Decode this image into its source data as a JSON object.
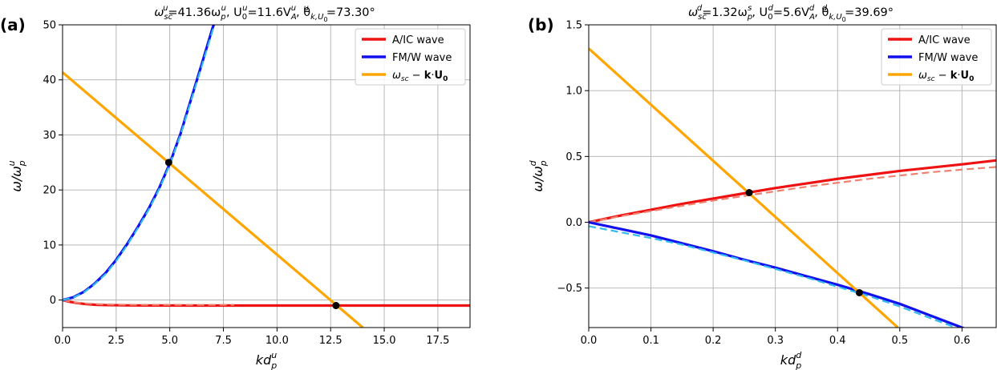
{
  "chart_data": [
    {
      "type": "line",
      "panel_label": "(a)",
      "title": "ω_sc^u=41.36ω_p^u,   U_0^u=11.6V_A^u,   θ^u_{k,U_0}=73.30°",
      "title_parts": {
        "p1": "ω",
        "p1_sub": "sc",
        "p1_sup": "u",
        "p2": "=41.36ω",
        "p2_sub": "p",
        "p2_sup": "u",
        "p3": ",   U",
        "p3_sub": "0",
        "p3_sup": "u",
        "p4": "=11.6V",
        "p4_sub": "A",
        "p4_sup": "u",
        "p5": ",   θ",
        "p5_sub": "k,U",
        "p5_subsub": "0",
        "p5_sup": "u",
        "p6": "=73.30°"
      },
      "xlabel": "kd_p^u",
      "xlabel_parts": {
        "main": "kd",
        "sub": "p",
        "sup": "u"
      },
      "ylabel": "ω/ω_p^u",
      "ylabel_parts": {
        "main": "ω/ω",
        "sub": "p",
        "sup": "u"
      },
      "xlim": [
        0,
        19
      ],
      "ylim": [
        -5,
        50
      ],
      "xticks": [
        0,
        2.5,
        5,
        7.5,
        10,
        12.5,
        15,
        17.5
      ],
      "xtick_labels": [
        "0.0",
        "2.5",
        "5.0",
        "7.5",
        "10.0",
        "12.5",
        "15.0",
        "17.5"
      ],
      "yticks": [
        0,
        10,
        20,
        30,
        40,
        50
      ],
      "ytick_labels": [
        "0",
        "10",
        "20",
        "30",
        "40",
        "50"
      ],
      "grid": true,
      "legend_position": "top-right",
      "legend": [
        {
          "label": "A/IC wave",
          "color": "#ee1111"
        },
        {
          "label": "FM/W wave",
          "color": "#1111ee"
        },
        {
          "label": "ω_sc − k·U_0",
          "color": "#ffa500"
        }
      ],
      "legend_parts": {
        "third_w": "ω",
        "third_sub": "sc",
        "third_mid": " − ",
        "third_k": "k",
        "third_dot": "·",
        "third_U": "U",
        "third_0": "0"
      },
      "series": [
        {
          "name": "A/IC wave",
          "color": "#ee1111",
          "style": "solid",
          "x": [
            0,
            0.3,
            0.6,
            1.0,
            1.5,
            2.0,
            3.0,
            4.0,
            6.0,
            8.0,
            10.0,
            12.0,
            14.0,
            17.0,
            19.0
          ],
          "y": [
            0,
            -0.3,
            -0.5,
            -0.7,
            -0.85,
            -0.92,
            -0.97,
            -0.99,
            -1.0,
            -1.0,
            -1.0,
            -1.0,
            -1.0,
            -1.0,
            -1.0
          ]
        },
        {
          "name": "A/IC approx",
          "color": "#f08070",
          "style": "dashed",
          "x": [
            0,
            0.3,
            0.6,
            1.0,
            1.5,
            2.0,
            3.0,
            4.0,
            6.0,
            8.0
          ],
          "y": [
            0,
            -0.25,
            -0.45,
            -0.6,
            -0.72,
            -0.8,
            -0.85,
            -0.87,
            -0.88,
            -0.88
          ]
        },
        {
          "name": "FM/W wave",
          "color": "#1111ee",
          "style": "solid",
          "x": [
            0,
            0.5,
            1.0,
            1.5,
            2.0,
            2.5,
            3.0,
            3.5,
            4.0,
            4.5,
            5.0,
            5.5,
            6.0,
            6.5,
            7.0,
            7.05
          ],
          "y": [
            0,
            0.5,
            1.5,
            3.0,
            4.9,
            7.3,
            10.1,
            13.2,
            16.5,
            20.3,
            24.8,
            30.2,
            36.6,
            43.0,
            49.5,
            50
          ]
        },
        {
          "name": "FM/W approx",
          "color": "#33bbee",
          "style": "dashed",
          "x": [
            0,
            0.5,
            1.0,
            1.5,
            2.0,
            2.5,
            3.0,
            3.5,
            4.0,
            4.5,
            5.0,
            5.5,
            6.0,
            6.5,
            7.0,
            7.1
          ],
          "y": [
            0,
            0.45,
            1.4,
            2.9,
            4.7,
            7.1,
            9.9,
            13.0,
            16.3,
            20.1,
            24.6,
            30.0,
            36.3,
            42.6,
            49.0,
            50
          ]
        },
        {
          "name": "ω_sc − k·U_0",
          "color": "#ffa500",
          "style": "solid",
          "x": [
            0,
            14.0
          ],
          "y": [
            41.36,
            -5.0
          ]
        }
      ],
      "markers": [
        {
          "x": 4.95,
          "y": 25.0
        },
        {
          "x": 12.75,
          "y": -1.0
        }
      ]
    },
    {
      "type": "line",
      "panel_label": "(b)",
      "title": "ω_sc^d=1.32ω_p^s,   U_0^d=5.6V_A^d,   θ^d_{k,U_0}=39.69°",
      "title_parts": {
        "p1": "ω",
        "p1_sub": "sc",
        "p1_sup": "d",
        "p2": "=1.32ω",
        "p2_sub": "p",
        "p2_sup": "s",
        "p3": ",   U",
        "p3_sub": "0",
        "p3_sup": "d",
        "p4": "=5.6V",
        "p4_sub": "A",
        "p4_sup": "d",
        "p5": ",   θ",
        "p5_sub": "k,U",
        "p5_subsub": "0",
        "p5_sup": "d",
        "p6": "=39.69°"
      },
      "xlabel": "kd_p^d",
      "xlabel_parts": {
        "main": "kd",
        "sub": "p",
        "sup": "d"
      },
      "ylabel": "ω/ω_p^d",
      "ylabel_parts": {
        "main": "ω/ω",
        "sub": "p",
        "sup": "d"
      },
      "xlim": [
        0,
        0.655
      ],
      "ylim": [
        -0.8,
        1.5
      ],
      "xticks": [
        0,
        0.1,
        0.2,
        0.3,
        0.4,
        0.5,
        0.6
      ],
      "xtick_labels": [
        "0.0",
        "0.1",
        "0.2",
        "0.3",
        "0.4",
        "0.5",
        "0.6"
      ],
      "yticks": [
        -0.5,
        0,
        0.5,
        1.0,
        1.5
      ],
      "ytick_labels": [
        "−0.5",
        "0.0",
        "0.5",
        "1.0",
        "1.5"
      ],
      "grid": true,
      "legend_position": "top-right",
      "legend": [
        {
          "label": "A/IC wave",
          "color": "#ee1111"
        },
        {
          "label": "FM/W wave",
          "color": "#1111ee"
        },
        {
          "label": "ω_sc − k·U_0",
          "color": "#ffa500"
        }
      ],
      "legend_parts": {
        "third_w": "ω",
        "third_sub": "sc",
        "third_mid": " − ",
        "third_k": "k",
        "third_dot": "·",
        "third_U": "U",
        "third_0": "0"
      },
      "series": [
        {
          "name": "A/IC wave",
          "color": "#ee1111",
          "style": "solid",
          "x": [
            0,
            0.05,
            0.1,
            0.15,
            0.2,
            0.25,
            0.3,
            0.35,
            0.4,
            0.45,
            0.5,
            0.55,
            0.6,
            0.655
          ],
          "y": [
            0,
            0.05,
            0.095,
            0.14,
            0.18,
            0.22,
            0.26,
            0.295,
            0.33,
            0.36,
            0.39,
            0.415,
            0.44,
            0.47
          ]
        },
        {
          "name": "A/IC approx",
          "color": "#f08070",
          "style": "dashed",
          "x": [
            0,
            0.05,
            0.1,
            0.15,
            0.2,
            0.25,
            0.3,
            0.35,
            0.4,
            0.45,
            0.5,
            0.55,
            0.6,
            0.655
          ],
          "y": [
            0,
            0.045,
            0.085,
            0.125,
            0.165,
            0.2,
            0.235,
            0.27,
            0.3,
            0.33,
            0.355,
            0.38,
            0.4,
            0.42
          ]
        },
        {
          "name": "FM/W wave",
          "color": "#1111ee",
          "style": "solid",
          "x": [
            0,
            0.05,
            0.1,
            0.15,
            0.2,
            0.25,
            0.3,
            0.35,
            0.4,
            0.45,
            0.5,
            0.55,
            0.6,
            0.605
          ],
          "y": [
            0,
            -0.05,
            -0.1,
            -0.16,
            -0.22,
            -0.285,
            -0.345,
            -0.41,
            -0.475,
            -0.545,
            -0.62,
            -0.71,
            -0.8,
            -0.81
          ]
        },
        {
          "name": "FM/W approx",
          "color": "#33bbee",
          "style": "dashed",
          "x": [
            0,
            0.05,
            0.1,
            0.15,
            0.2,
            0.25,
            0.3,
            0.35,
            0.4,
            0.45,
            0.5,
            0.55,
            0.59
          ],
          "y": [
            -0.03,
            -0.075,
            -0.12,
            -0.17,
            -0.23,
            -0.29,
            -0.355,
            -0.42,
            -0.49,
            -0.56,
            -0.64,
            -0.73,
            -0.8
          ]
        },
        {
          "name": "ω_sc − k·U_0",
          "color": "#ffa500",
          "style": "solid",
          "x": [
            0,
            0.497
          ],
          "y": [
            1.32,
            -0.8
          ]
        }
      ],
      "markers": [
        {
          "x": 0.258,
          "y": 0.225
        },
        {
          "x": 0.435,
          "y": -0.535
        }
      ]
    }
  ]
}
